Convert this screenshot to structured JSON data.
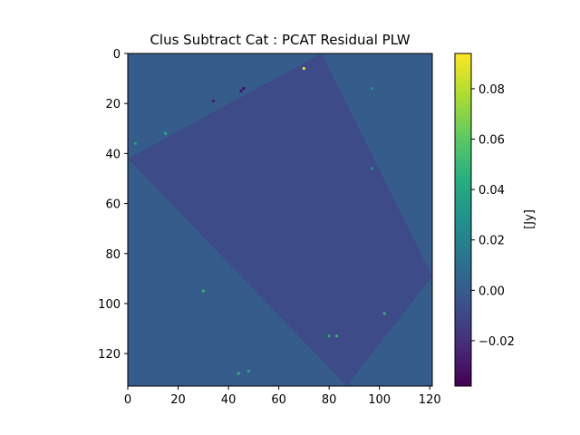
{
  "chart_data": {
    "type": "heatmap",
    "title": "Clus Subtract Cat : PCAT Residual PLW",
    "xlabel": "",
    "ylabel": "",
    "x_range": [
      0,
      121
    ],
    "y_range": [
      0,
      133
    ],
    "y_inverted": true,
    "x_ticks": [
      0,
      20,
      40,
      60,
      80,
      100,
      120
    ],
    "y_ticks": [
      0,
      20,
      40,
      60,
      80,
      100,
      120
    ],
    "background_value": 0.0,
    "colormap": "viridis",
    "colorbar": {
      "label": "[Jy]",
      "range": [
        -0.038,
        0.094
      ],
      "ticks": [
        -0.02,
        0.0,
        0.02,
        0.04,
        0.06,
        0.08
      ],
      "tick_labels": [
        "−0.02",
        "0.00",
        "0.02",
        "0.04",
        "0.06",
        "0.08"
      ]
    },
    "data_region": {
      "shape": "rotated-square",
      "corners": [
        [
          77,
          0
        ],
        [
          121,
          89
        ],
        [
          87,
          133
        ],
        [
          0,
          42
        ]
      ]
    },
    "notable_pixels": [
      {
        "x": 70,
        "y": 6,
        "value": 0.094
      },
      {
        "x": 46,
        "y": 14,
        "value": -0.036
      },
      {
        "x": 45,
        "y": 15,
        "value": -0.034
      },
      {
        "x": 34,
        "y": 19,
        "value": -0.03
      },
      {
        "x": 15,
        "y": 32,
        "value": 0.045
      },
      {
        "x": 30,
        "y": 95,
        "value": 0.05
      },
      {
        "x": 83,
        "y": 113,
        "value": 0.05
      },
      {
        "x": 80,
        "y": 113,
        "value": 0.045
      },
      {
        "x": 44,
        "y": 128,
        "value": 0.05
      },
      {
        "x": 48,
        "y": 127,
        "value": 0.04
      },
      {
        "x": 97,
        "y": 14,
        "value": 0.03
      },
      {
        "x": 97,
        "y": 46,
        "value": 0.03
      },
      {
        "x": 102,
        "y": 104,
        "value": 0.05
      },
      {
        "x": 3,
        "y": 36,
        "value": 0.035
      }
    ]
  }
}
